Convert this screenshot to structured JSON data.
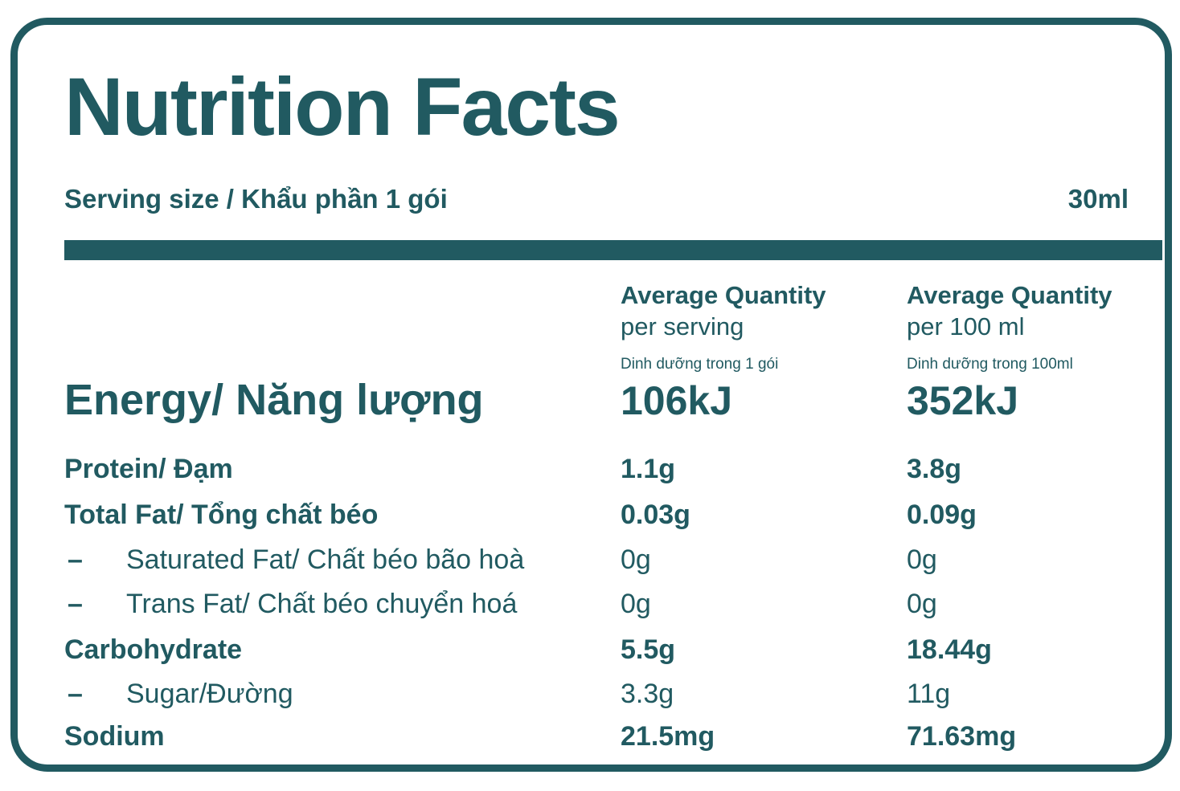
{
  "title": "Nutrition Facts",
  "serving": {
    "label": "Serving size / Khẩu phần 1 gói",
    "value": "30ml"
  },
  "columns": [
    {
      "title": "Average Quantity",
      "subtitle": "per serving",
      "note": "Dinh dưỡng trong 1 gói"
    },
    {
      "title": "Average Quantity",
      "subtitle": "per 100 ml",
      "note": "Dinh dưỡng trong 100ml"
    }
  ],
  "bullet": "–",
  "rows": [
    {
      "name": "Energy/ Năng lượng",
      "per_serving": "106kJ",
      "per_100ml": "352kJ"
    },
    {
      "name": "Protein/ Đạm",
      "per_serving": "1.1g",
      "per_100ml": "3.8g"
    },
    {
      "name": "Total Fat/ Tổng chất béo",
      "per_serving": "0.03g",
      "per_100ml": "0.09g"
    },
    {
      "name": "Saturated Fat/ Chất béo bão hoà",
      "per_serving": "0g",
      "per_100ml": "0g"
    },
    {
      "name": "Trans Fat/ Chất béo chuyển hoá",
      "per_serving": "0g",
      "per_100ml": "0g"
    },
    {
      "name": "Carbohydrate",
      "per_serving": "5.5g",
      "per_100ml": "18.44g"
    },
    {
      "name": "Sugar/Đường",
      "per_serving": "3.3g",
      "per_100ml": "11g"
    },
    {
      "name": "Sodium",
      "per_serving": "21.5mg",
      "per_100ml": "71.63mg"
    }
  ],
  "colors": {
    "accent": "#215A61",
    "background": "#FFFFFF"
  }
}
